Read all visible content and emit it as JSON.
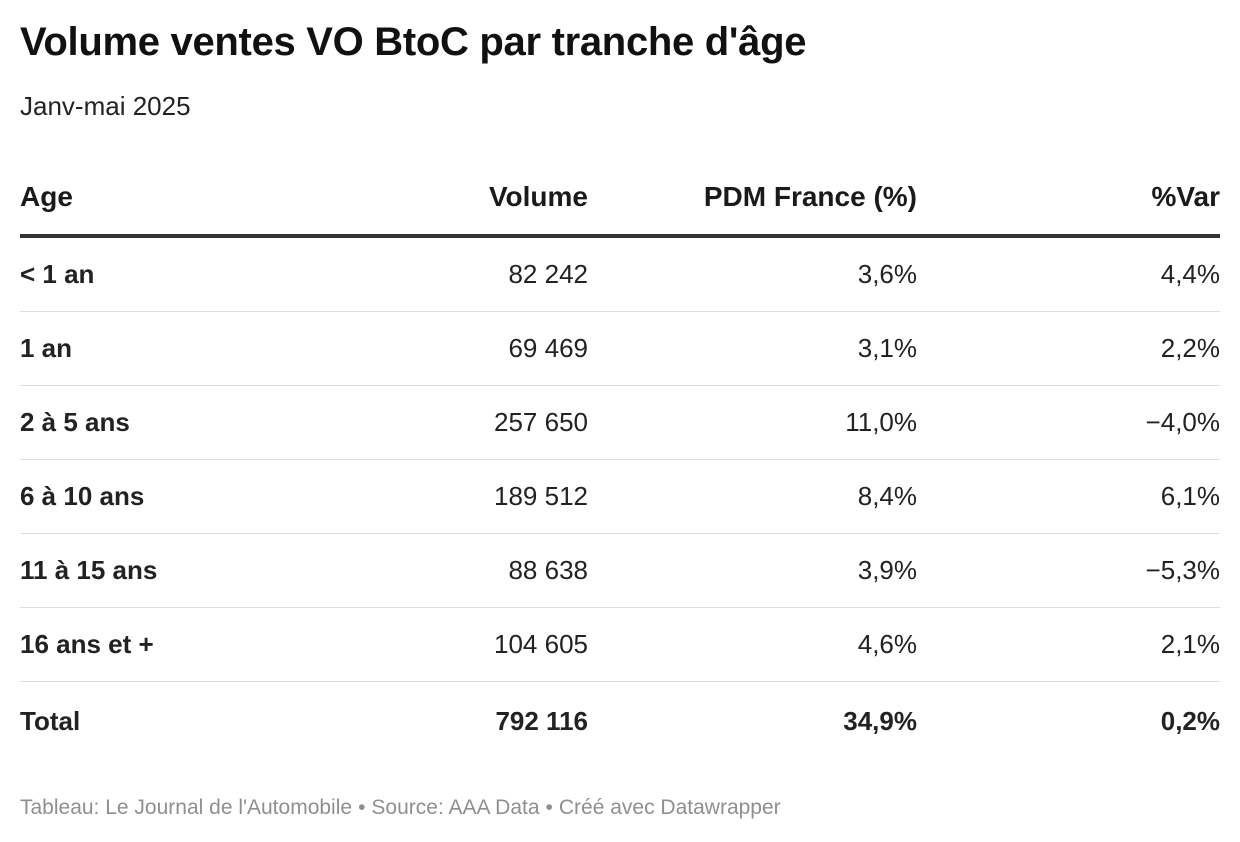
{
  "title": "Volume ventes VO BtoC par tranche d'âge",
  "subtitle": "Janv-mai 2025",
  "table": {
    "headers": {
      "age": "Age",
      "volume": "Volume",
      "pdm": "PDM France (%)",
      "var": "%Var"
    },
    "rows": [
      {
        "age": "< 1 an",
        "volume": "82 242",
        "pdm": "3,6%",
        "var": "4,4%"
      },
      {
        "age": "1 an",
        "volume": "69 469",
        "pdm": "3,1%",
        "var": "2,2%"
      },
      {
        "age": "2 à 5 ans",
        "volume": "257 650",
        "pdm": "11,0%",
        "var": "−4,0%"
      },
      {
        "age": "6 à 10 ans",
        "volume": "189 512",
        "pdm": "8,4%",
        "var": "6,1%"
      },
      {
        "age": "11 à 15 ans",
        "volume": "88 638",
        "pdm": "3,9%",
        "var": "−5,3%"
      },
      {
        "age": "16 ans et +",
        "volume": "104 605",
        "pdm": "4,6%",
        "var": "2,1%"
      },
      {
        "age": "Total",
        "volume": "792 116",
        "pdm": "34,9%",
        "var": "0,2%"
      }
    ]
  },
  "footer": {
    "table_credit": "Tableau: Le Journal de l'Automobile",
    "separator": "•",
    "source": "Source: AAA Data",
    "created_with": "Créé avec Datawrapper"
  }
}
